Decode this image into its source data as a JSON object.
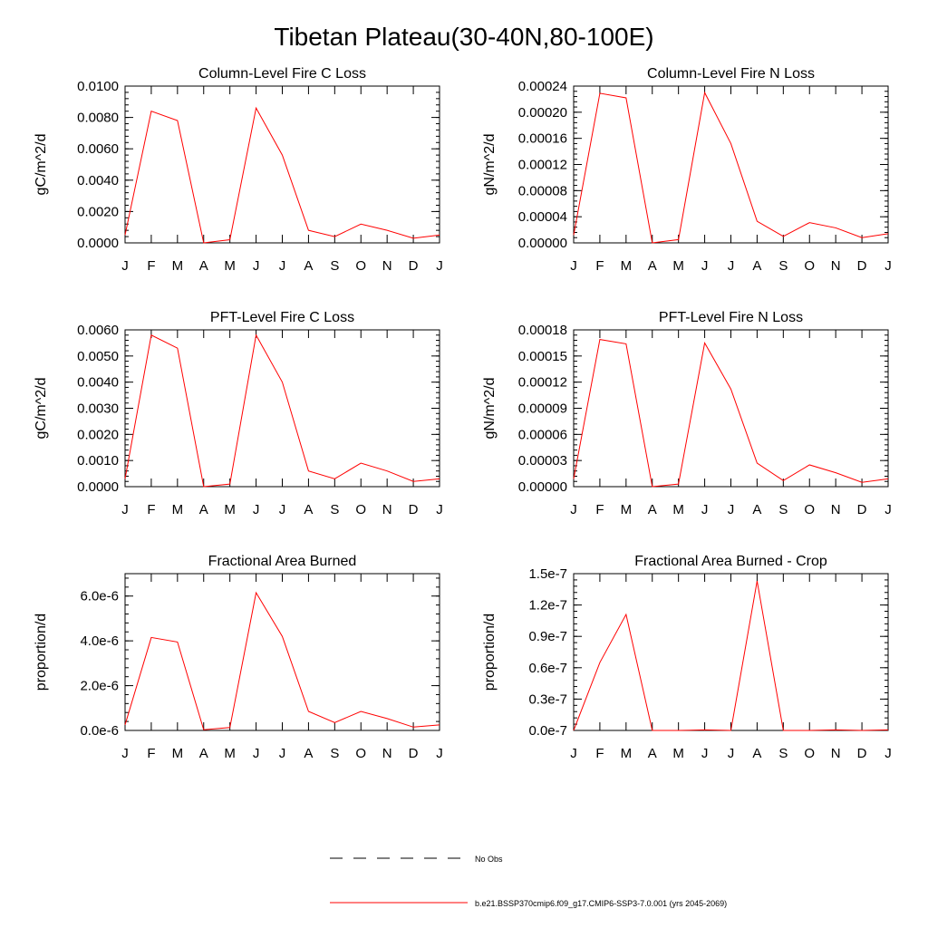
{
  "figure": {
    "title": "Tibetan Plateau(30-40N,80-100E)",
    "series_color": "#ff0000",
    "legend": [
      {
        "label": "No Obs",
        "style": "dashed",
        "color": "#000000"
      },
      {
        "label": "b.e21.BSSP370cmip6.f09_g17.CMIP6-SSP3-7.0.001 (yrs 2045-2069)",
        "style": "solid",
        "color": "#ff0000"
      }
    ]
  },
  "chart_data": [
    {
      "type": "line",
      "title": "Column-Level Fire C Loss",
      "ylabel": "gC/m^2/d",
      "xlabel": "",
      "categories": [
        "J",
        "F",
        "M",
        "A",
        "M",
        "J",
        "J",
        "A",
        "S",
        "O",
        "N",
        "D",
        "J"
      ],
      "ylim": [
        0,
        0.01
      ],
      "yticks": [
        0,
        0.002,
        0.004,
        0.006,
        0.008,
        0.01
      ],
      "ytick_labels": [
        "0.0000",
        "0.0020",
        "0.0040",
        "0.0060",
        "0.0080",
        "0.0100"
      ],
      "grid": false,
      "series": [
        {
          "values": [
            0.0005,
            0.0084,
            0.0078,
            0.0,
            0.0002,
            0.0086,
            0.0056,
            0.0008,
            0.0004,
            0.0012,
            0.0008,
            0.0003,
            0.0005
          ]
        }
      ]
    },
    {
      "type": "line",
      "title": "Column-Level Fire N Loss",
      "ylabel": "gN/m^2/d",
      "xlabel": "",
      "categories": [
        "J",
        "F",
        "M",
        "A",
        "M",
        "J",
        "J",
        "A",
        "S",
        "O",
        "N",
        "D",
        "J"
      ],
      "ylim": [
        0,
        0.00024
      ],
      "yticks": [
        0,
        4e-05,
        8e-05,
        0.00012,
        0.00016,
        0.0002,
        0.00024
      ],
      "ytick_labels": [
        "0.00000",
        "0.00004",
        "0.00008",
        "0.00012",
        "0.00016",
        "0.00020",
        "0.00024"
      ],
      "grid": false,
      "series": [
        {
          "values": [
            1.2e-05,
            0.000229,
            0.000222,
            0.0,
            5e-06,
            0.00023,
            0.000152,
            3.3e-05,
            1e-05,
            3.1e-05,
            2.3e-05,
            8e-06,
            1.4e-05
          ]
        }
      ]
    },
    {
      "type": "line",
      "title": "PFT-Level Fire C Loss",
      "ylabel": "gC/m^2/d",
      "xlabel": "",
      "categories": [
        "J",
        "F",
        "M",
        "A",
        "M",
        "J",
        "J",
        "A",
        "S",
        "O",
        "N",
        "D",
        "J"
      ],
      "ylim": [
        0,
        0.006
      ],
      "yticks": [
        0,
        0.001,
        0.002,
        0.003,
        0.004,
        0.005,
        0.006
      ],
      "ytick_labels": [
        "0.0000",
        "0.0010",
        "0.0020",
        "0.0030",
        "0.0040",
        "0.0050",
        "0.0060"
      ],
      "grid": false,
      "series": [
        {
          "values": [
            0.0003,
            0.0058,
            0.0053,
            0.0,
            0.0001,
            0.0058,
            0.004,
            0.0006,
            0.0003,
            0.0009,
            0.0006,
            0.0002,
            0.0003
          ]
        }
      ]
    },
    {
      "type": "line",
      "title": "PFT-Level Fire N Loss",
      "ylabel": "gN/m^2/d",
      "xlabel": "",
      "categories": [
        "J",
        "F",
        "M",
        "A",
        "M",
        "J",
        "J",
        "A",
        "S",
        "O",
        "N",
        "D",
        "J"
      ],
      "ylim": [
        0,
        0.00018
      ],
      "yticks": [
        0,
        3e-05,
        6e-05,
        9e-05,
        0.00012,
        0.00015,
        0.00018
      ],
      "ytick_labels": [
        "0.00000",
        "0.00003",
        "0.00006",
        "0.00009",
        "0.00012",
        "0.00015",
        "0.00018"
      ],
      "grid": false,
      "series": [
        {
          "values": [
            9e-06,
            0.000169,
            0.000164,
            0.0,
            3e-06,
            0.000165,
            0.000112,
            2.7e-05,
            7e-06,
            2.5e-05,
            1.6e-05,
            5e-06,
            9e-06
          ]
        }
      ]
    },
    {
      "type": "line",
      "title": "Fractional Area Burned",
      "ylabel": "proportion/d",
      "xlabel": "",
      "categories": [
        "J",
        "F",
        "M",
        "A",
        "M",
        "J",
        "J",
        "A",
        "S",
        "O",
        "N",
        "D",
        "J"
      ],
      "ylim": [
        0,
        7e-06
      ],
      "yticks": [
        0,
        2e-06,
        4e-06,
        6e-06
      ],
      "ytick_labels": [
        "0.0e-6",
        "2.0e-6",
        "4.0e-6",
        "6.0e-6"
      ],
      "grid": false,
      "series": [
        {
          "values": [
            2.5e-07,
            4.15e-06,
            3.95e-06,
            3e-08,
            1.3e-07,
            6.15e-06,
            4.2e-06,
            8.5e-07,
            3.5e-07,
            8.5e-07,
            5.3e-07,
            1.5e-07,
            2.5e-07
          ]
        }
      ]
    },
    {
      "type": "line",
      "title": "Fractional Area Burned - Crop",
      "ylabel": "proportion/d",
      "xlabel": "",
      "categories": [
        "J",
        "F",
        "M",
        "A",
        "M",
        "J",
        "J",
        "A",
        "S",
        "O",
        "N",
        "D",
        "J"
      ],
      "ylim": [
        0,
        1.5e-07
      ],
      "yticks": [
        0,
        3e-08,
        6e-08,
        9e-08,
        1.2e-07,
        1.5e-07
      ],
      "ytick_labels": [
        "0.0e-7",
        "0.3e-7",
        "0.6e-7",
        "0.9e-7",
        "1.2e-7",
        "1.5e-7"
      ],
      "grid": false,
      "series": [
        {
          "values": [
            0,
            6.5e-08,
            1.11e-07,
            0,
            0,
            5e-10,
            0,
            1.43e-07,
            0,
            0,
            5e-10,
            0,
            5e-10
          ]
        }
      ]
    }
  ]
}
